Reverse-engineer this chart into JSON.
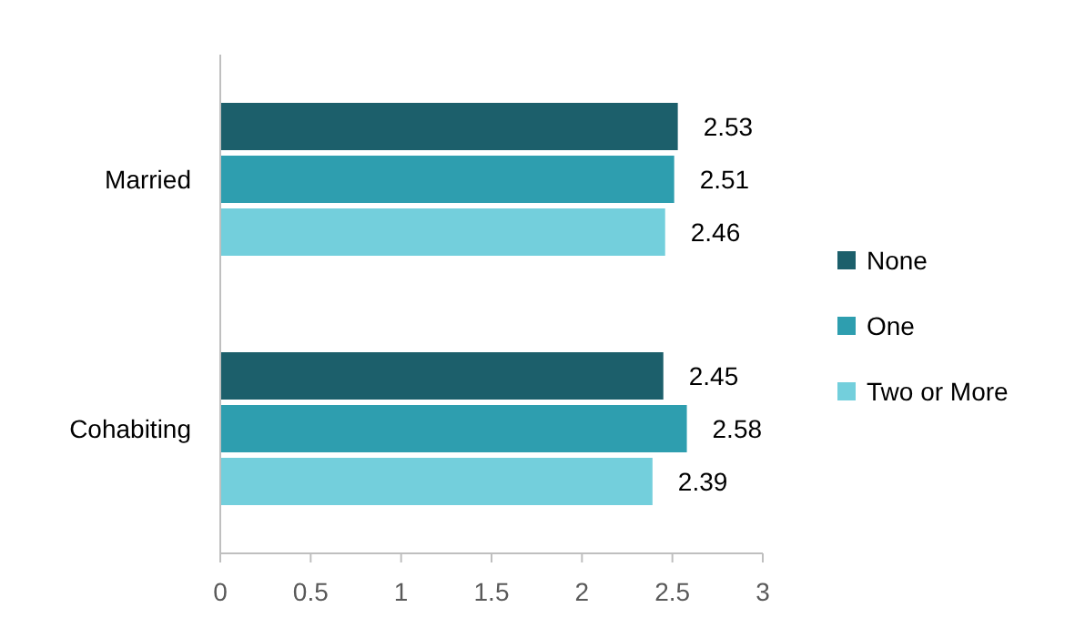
{
  "chart_data": {
    "type": "bar",
    "orientation": "horizontal",
    "categories": [
      "Married",
      "Cohabiting"
    ],
    "series": [
      {
        "name": "None",
        "color": "#1c5f6b",
        "values": [
          2.53,
          2.45
        ]
      },
      {
        "name": "One",
        "color": "#2e9eaf",
        "values": [
          2.51,
          2.58
        ]
      },
      {
        "name": "Two or More",
        "color": "#73cfdc",
        "values": [
          2.46,
          2.39
        ]
      }
    ],
    "xlim": [
      0,
      3
    ],
    "xticks": [
      0,
      0.5,
      1,
      1.5,
      2,
      2.5,
      3
    ],
    "data_labels": true,
    "legend": "right",
    "grid": false
  }
}
